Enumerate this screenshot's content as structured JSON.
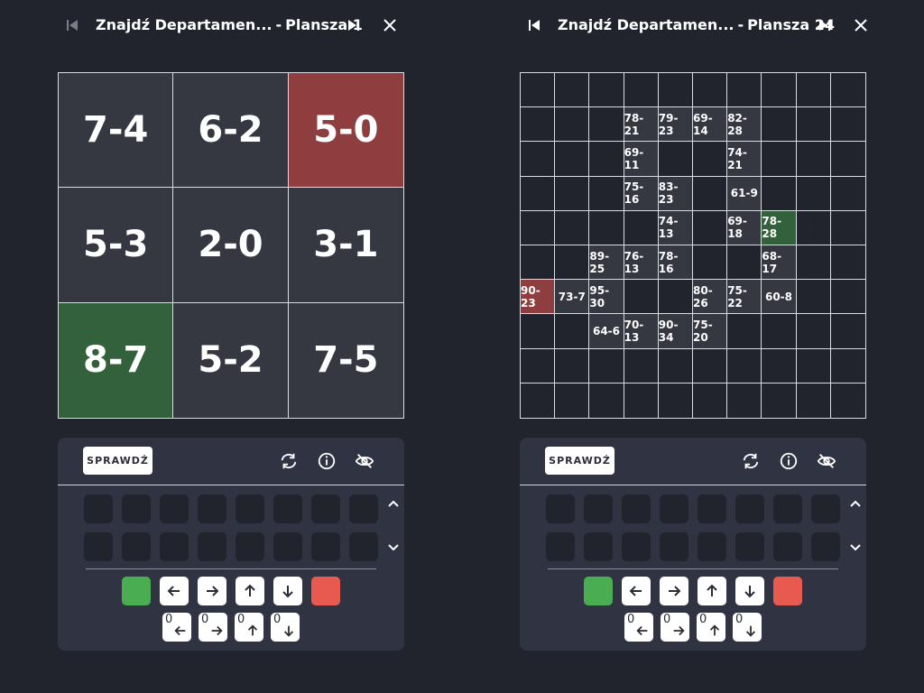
{
  "colors": {
    "background": "#21242d",
    "cell": "#353840",
    "red": "#8f3e40",
    "green": "#32613c",
    "controls_bg": "#2f3342",
    "accept_key": "#4aad52",
    "reject_key": "#e8594f"
  },
  "left": {
    "title": "Znajdź Departamen...",
    "board_label": "Plansza 1",
    "check_label": "SPRAWDŹ",
    "cells": [
      {
        "text": "7-4",
        "color": ""
      },
      {
        "text": "6-2",
        "color": ""
      },
      {
        "text": "5-0",
        "color": "red"
      },
      {
        "text": "5-3",
        "color": ""
      },
      {
        "text": "2-0",
        "color": ""
      },
      {
        "text": "3-1",
        "color": ""
      },
      {
        "text": "8-7",
        "color": "green"
      },
      {
        "text": "5-2",
        "color": ""
      },
      {
        "text": "7-5",
        "color": ""
      }
    ]
  },
  "right": {
    "title": "Znajdź Departamen...",
    "board_label": "Plansza 24",
    "check_label": "SPRAWDŹ",
    "grid": [
      [
        "",
        "",
        "",
        "",
        "",
        "",
        "",
        "",
        "",
        ""
      ],
      [
        "",
        "",
        "",
        "78-21",
        "79-23",
        "69-14",
        "82-28",
        "",
        "",
        ""
      ],
      [
        "",
        "",
        "",
        "69-11",
        "",
        "",
        "74-21",
        "",
        "",
        ""
      ],
      [
        "",
        "",
        "",
        "75-16",
        "83-23",
        "",
        "61-9",
        "",
        "",
        ""
      ],
      [
        "",
        "",
        "",
        "",
        "74-13",
        "",
        "69-18",
        "78-28",
        "",
        ""
      ],
      [
        "",
        "",
        "89-25",
        "76-13",
        "78-16",
        "",
        "",
        "68-17",
        "",
        ""
      ],
      [
        "90-23",
        "73-7",
        "95-30",
        "",
        "",
        "80-26",
        "75-22",
        "60-8",
        "",
        ""
      ],
      [
        "",
        "",
        "64-6",
        "70-13",
        "90-34",
        "75-20",
        "",
        "",
        "",
        ""
      ],
      [
        "",
        "",
        "",
        "",
        "",
        "",
        "",
        "",
        "",
        ""
      ],
      [
        "",
        "",
        "",
        "",
        "",
        "",
        "",
        "",
        "",
        ""
      ]
    ],
    "red_cell": "90-23",
    "green_cell": "78-28"
  },
  "icons": {
    "first": "skip-start-icon",
    "last": "skip-end-icon",
    "close": "close-icon",
    "refresh": "refresh-icon",
    "info": "info-icon",
    "hide": "eye-slash-icon",
    "up": "chevron-up-icon",
    "down": "chevron-down-icon"
  },
  "zero_keys": [
    "0",
    "0",
    "0",
    "0"
  ]
}
